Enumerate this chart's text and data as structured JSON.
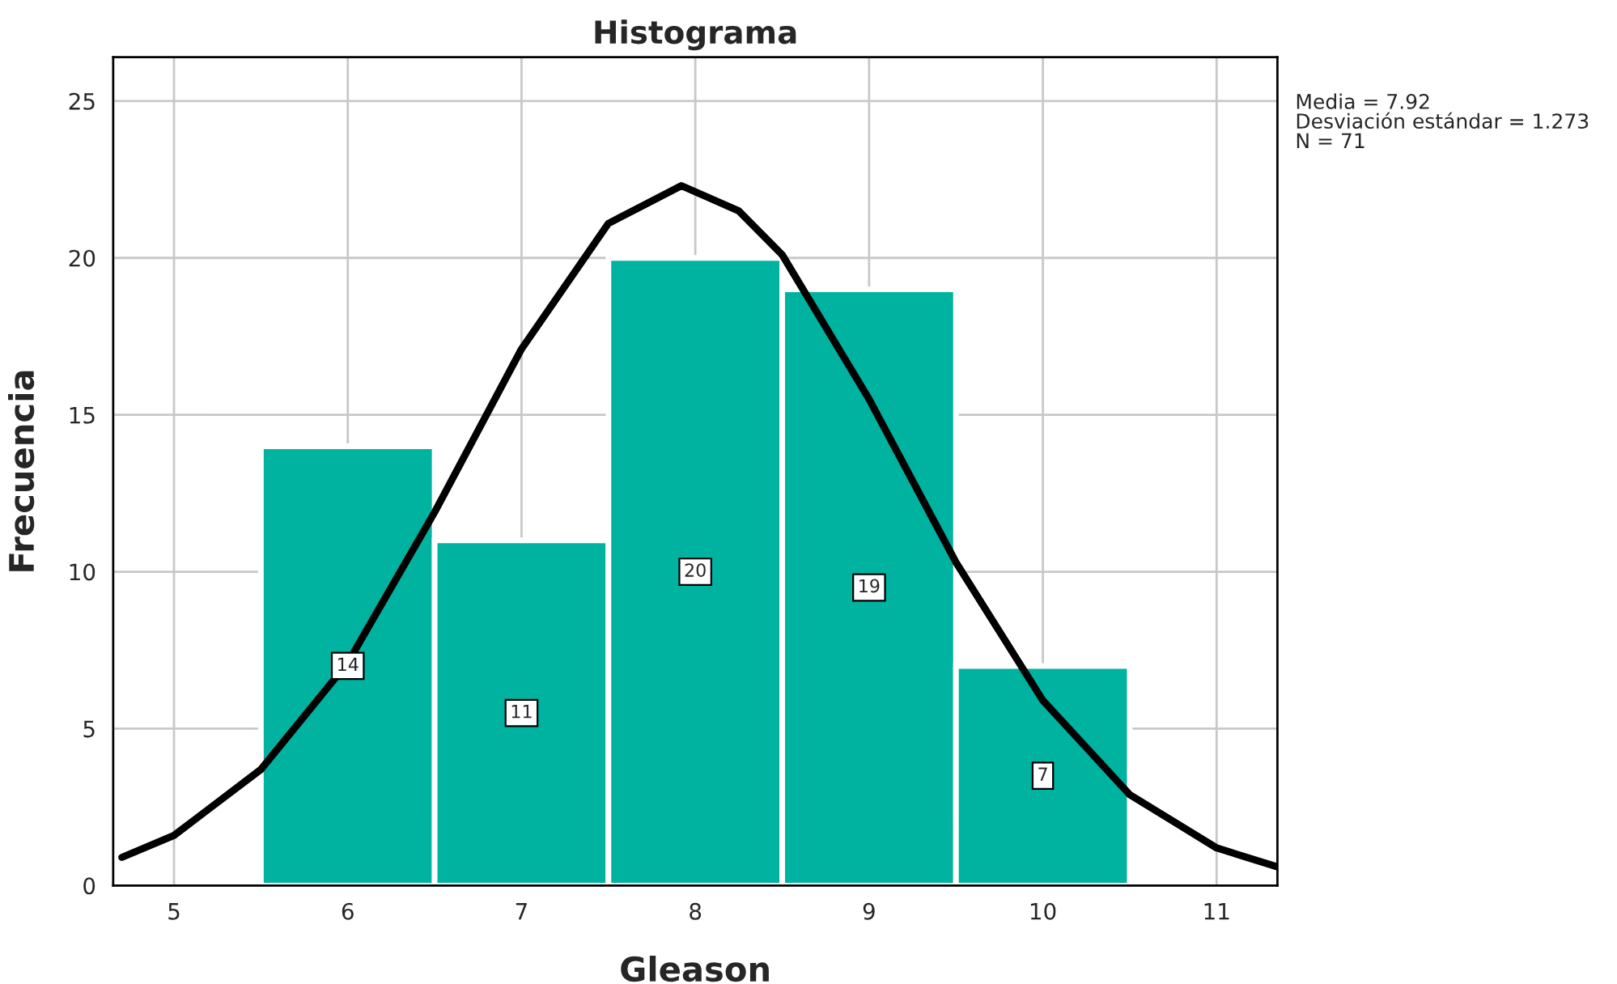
{
  "chart_data": {
    "type": "histogram",
    "title": "Histograma",
    "xlabel": "Gleason",
    "ylabel": "Frecuencia",
    "series": [
      {
        "bins": [
          5.5,
          6.5,
          7.5,
          8.5,
          9.5,
          10.5
        ],
        "values": [
          14,
          11,
          20,
          19,
          7
        ],
        "value_labels": [
          "14",
          "11",
          "20",
          "19",
          "7"
        ],
        "color": "#00b2a0"
      },
      {
        "type": "line",
        "x": [
          4.7,
          5,
          5.5,
          6,
          6.5,
          7,
          7.5,
          7.92,
          8.25,
          8.5,
          9,
          9.5,
          10,
          10.5,
          11,
          11.35
        ],
        "values": [
          0.9,
          1.6,
          3.7,
          7.1,
          11.9,
          17.1,
          21.1,
          22.3,
          21.5,
          20.1,
          15.5,
          10.3,
          5.9,
          2.9,
          1.2,
          0.6
        ],
        "color": "#000000"
      }
    ],
    "xlim": [
      4.65,
      11.35
    ],
    "xticks": [
      5,
      6,
      7,
      8,
      9,
      10,
      11
    ],
    "ylim": [
      0,
      26.4
    ],
    "yticks": [
      0,
      5,
      10,
      15,
      20,
      25
    ],
    "grid": true,
    "annotations": [
      "Media = 7.92",
      "Desviación estándar = 1.273",
      "N = 71"
    ]
  }
}
